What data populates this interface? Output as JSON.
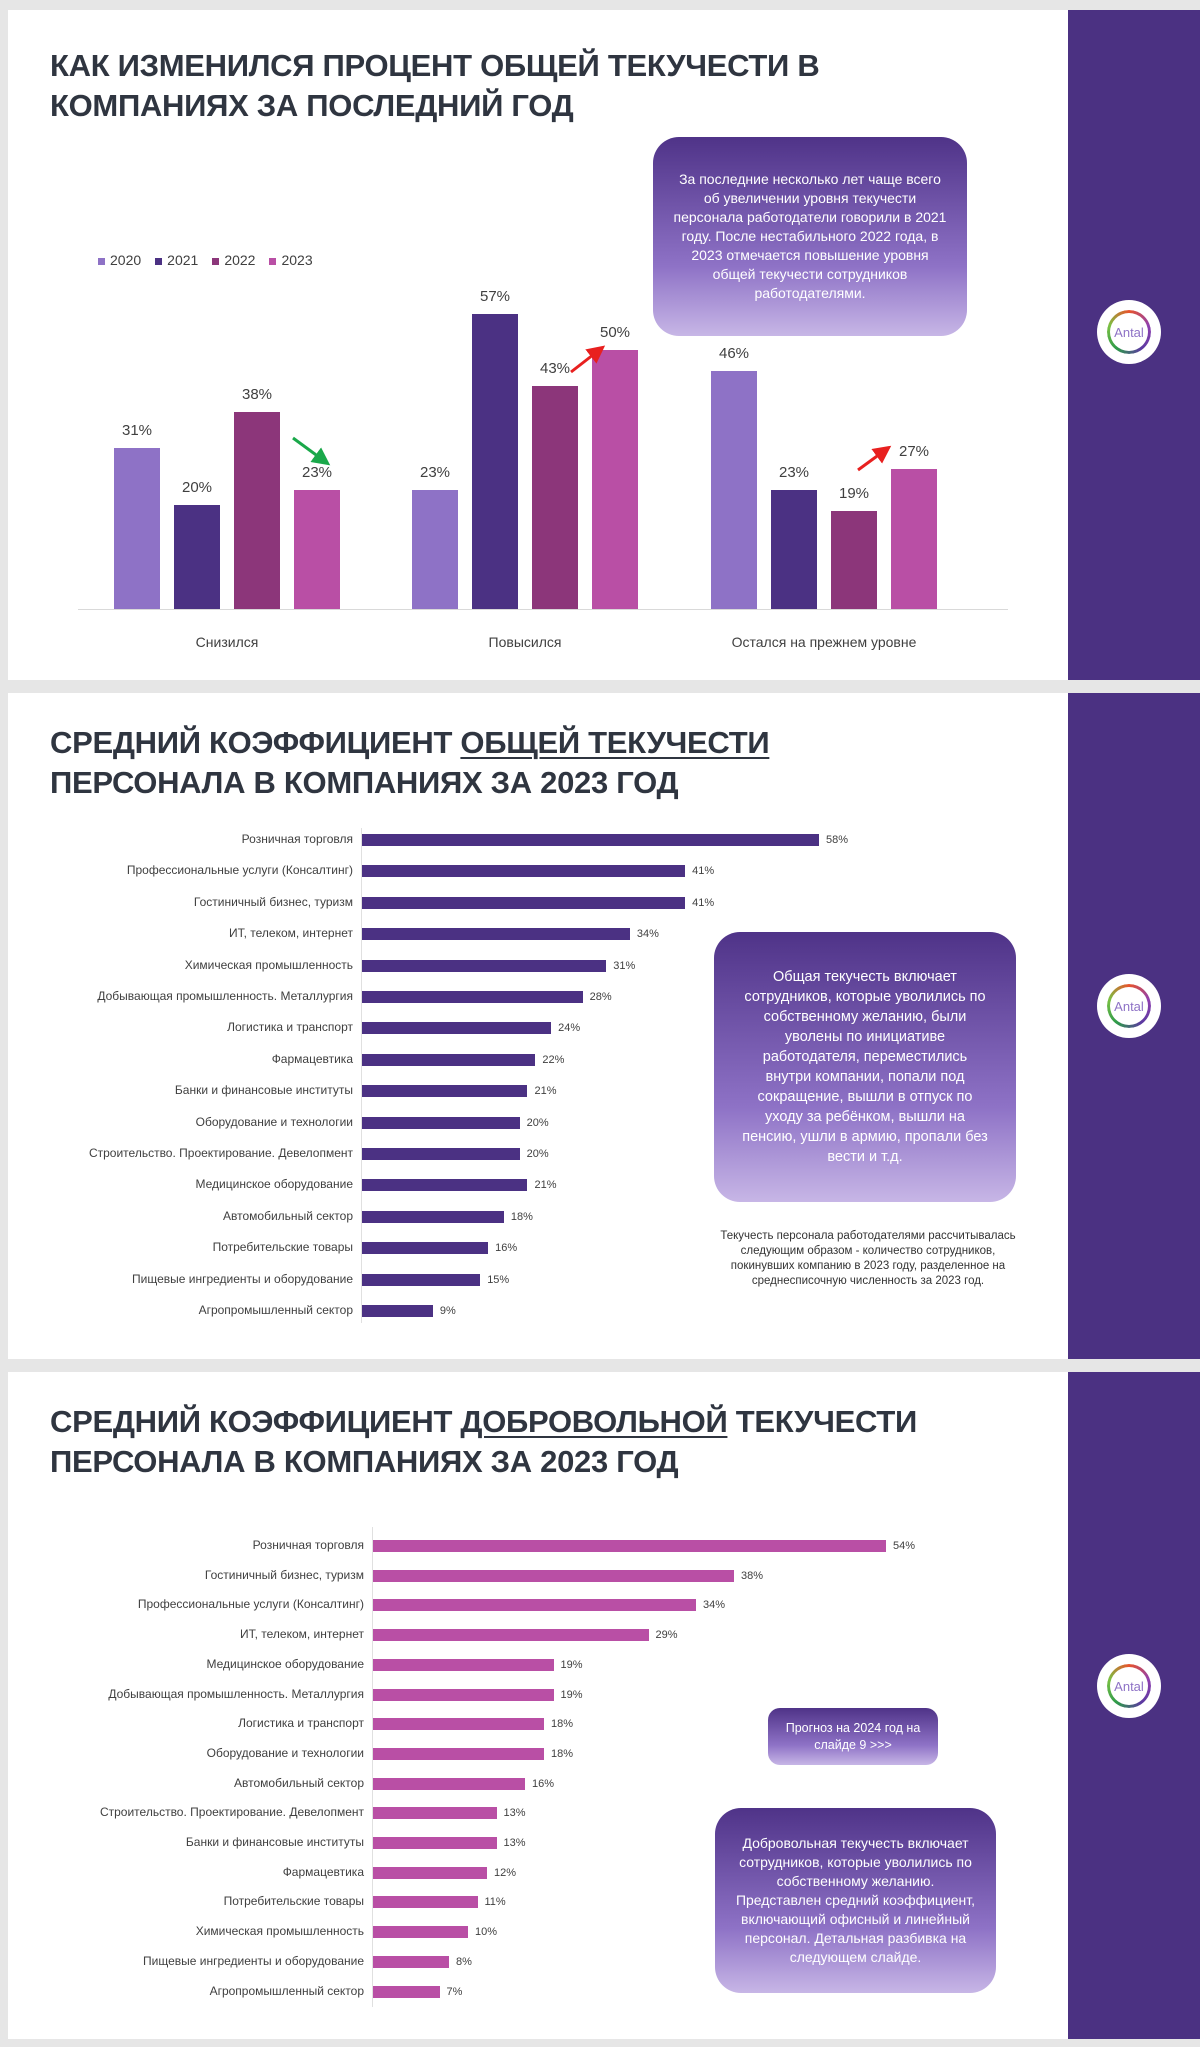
{
  "brand": {
    "logo_text": "Antal",
    "sidebar_color": "#4b3182"
  },
  "slide1": {
    "title_line1": "КАК ИЗМЕНИЛСЯ ПРОЦЕНТ ОБЩЕЙ ТЕКУЧЕСТИ В",
    "title_line2": "КОМПАНИЯХ ЗА ПОСЛЕДНИЙ ГОД",
    "callout": "За последние несколько лет чаще всего об увеличении уровня текучести персонала работодатели говорили в 2021 году. После нестабильного 2022 года, в 2023 отмечается повышение уровня общей текучести сотрудников работодателями."
  },
  "slide2": {
    "title_pre": "СРЕДНИЙ КОЭФФИЦИЕНТ ",
    "title_underlined": "ОБЩЕЙ ТЕКУЧЕСТИ",
    "title_line2": "ПЕРСОНАЛА В КОМПАНИЯХ ЗА 2023 ГОД",
    "callout": "Общая текучесть включает сотрудников, которые уволились по собственному желанию, были уволены по инициативе работодателя, переместились внутри компании, попали под сокращение, вышли в отпуск по уходу за ребёнком, вышли на пенсию, ушли в армию, пропали без вести и т.д.",
    "note": "Текучесть персонала работодателями рассчитывалась следующим образом - количество сотрудников, покинувших компанию в 2023 году, разделенное на среднесписочную численность за 2023 год."
  },
  "slide3": {
    "title_pre": "СРЕДНИЙ КОЭФФИЦИЕНТ ",
    "title_underlined": "ДОБРОВОЛЬНОЙ",
    "title_post": " ТЕКУЧЕСТИ",
    "title_line2": "ПЕРСОНАЛА В КОМПАНИЯХ ЗА 2023 ГОД",
    "forecast": "Прогноз на 2024 год на слайде 9 >>>",
    "callout": "Добровольная текучесть включает сотрудников, которые уволились по собственному желанию. Представлен средний коэффициент, включающий офисный и линейный персонал. Детальная разбивка на следующем слайде."
  },
  "chart_data": [
    {
      "type": "bar",
      "categories": [
        "Снизился",
        "Повысился",
        "Остался на прежнем уровне"
      ],
      "series": [
        {
          "name": "2020",
          "color": "#8e72c6",
          "values": [
            31,
            23,
            46
          ]
        },
        {
          "name": "2021",
          "color": "#4b3183",
          "values": [
            20,
            57,
            23
          ]
        },
        {
          "name": "2022",
          "color": "#8c367a",
          "values": [
            38,
            43,
            19
          ]
        },
        {
          "name": "2023",
          "color": "#b94fa5",
          "values": [
            23,
            50,
            27
          ]
        }
      ],
      "unit": "%",
      "legend": "top-left",
      "annotations": [
        {
          "category": "Снизился",
          "arrow": "down",
          "color": "#1aa84a"
        },
        {
          "category": "Повысился",
          "arrow": "up",
          "color": "#e8201f"
        },
        {
          "category": "Остался на прежнем уровне",
          "arrow": "up",
          "color": "#e8201f"
        }
      ]
    },
    {
      "type": "bar",
      "orientation": "horizontal",
      "color": "#4b3183",
      "unit": "%",
      "categories": [
        "Розничная торговля",
        "Профессиональные услуги (Консалтинг)",
        "Гостиничный бизнес, туризм",
        "ИТ, телеком, интернет",
        "Химическая промышленность",
        "Добывающая промышленность. Металлургия",
        "Логистика и транспорт",
        "Фармацевтика",
        "Банки и финансовые институты",
        "Оборудование и технологии",
        "Строительство. Проектирование. Девелопмент",
        "Медицинское оборудование",
        "Автомобильный сектор",
        "Потребительские товары",
        "Пищевые ингредиенты и оборудование",
        "Агропромышленный сектор"
      ],
      "values": [
        58,
        41,
        41,
        34,
        31,
        28,
        24,
        22,
        21,
        20,
        20,
        21,
        18,
        16,
        15,
        9
      ]
    },
    {
      "type": "bar",
      "orientation": "horizontal",
      "color": "#b94fa5",
      "unit": "%",
      "categories": [
        "Розничная торговля",
        "Гостиничный бизнес, туризм",
        "Профессиональные услуги (Консалтинг)",
        "ИТ, телеком, интернет",
        "Медицинское оборудование",
        "Добывающая промышленность. Металлургия",
        "Логистика и транспорт",
        "Оборудование и технологии",
        "Автомобильный сектор",
        "Строительство. Проектирование. Девелопмент",
        "Банки и финансовые институты",
        "Фармацевтика",
        "Потребительские товары",
        "Химическая промышленность",
        "Пищевые ингредиенты и оборудование",
        "Агропромышленный сектор"
      ],
      "values": [
        54,
        38,
        34,
        29,
        19,
        19,
        18,
        18,
        16,
        13,
        13,
        12,
        11,
        10,
        8,
        7
      ]
    }
  ]
}
